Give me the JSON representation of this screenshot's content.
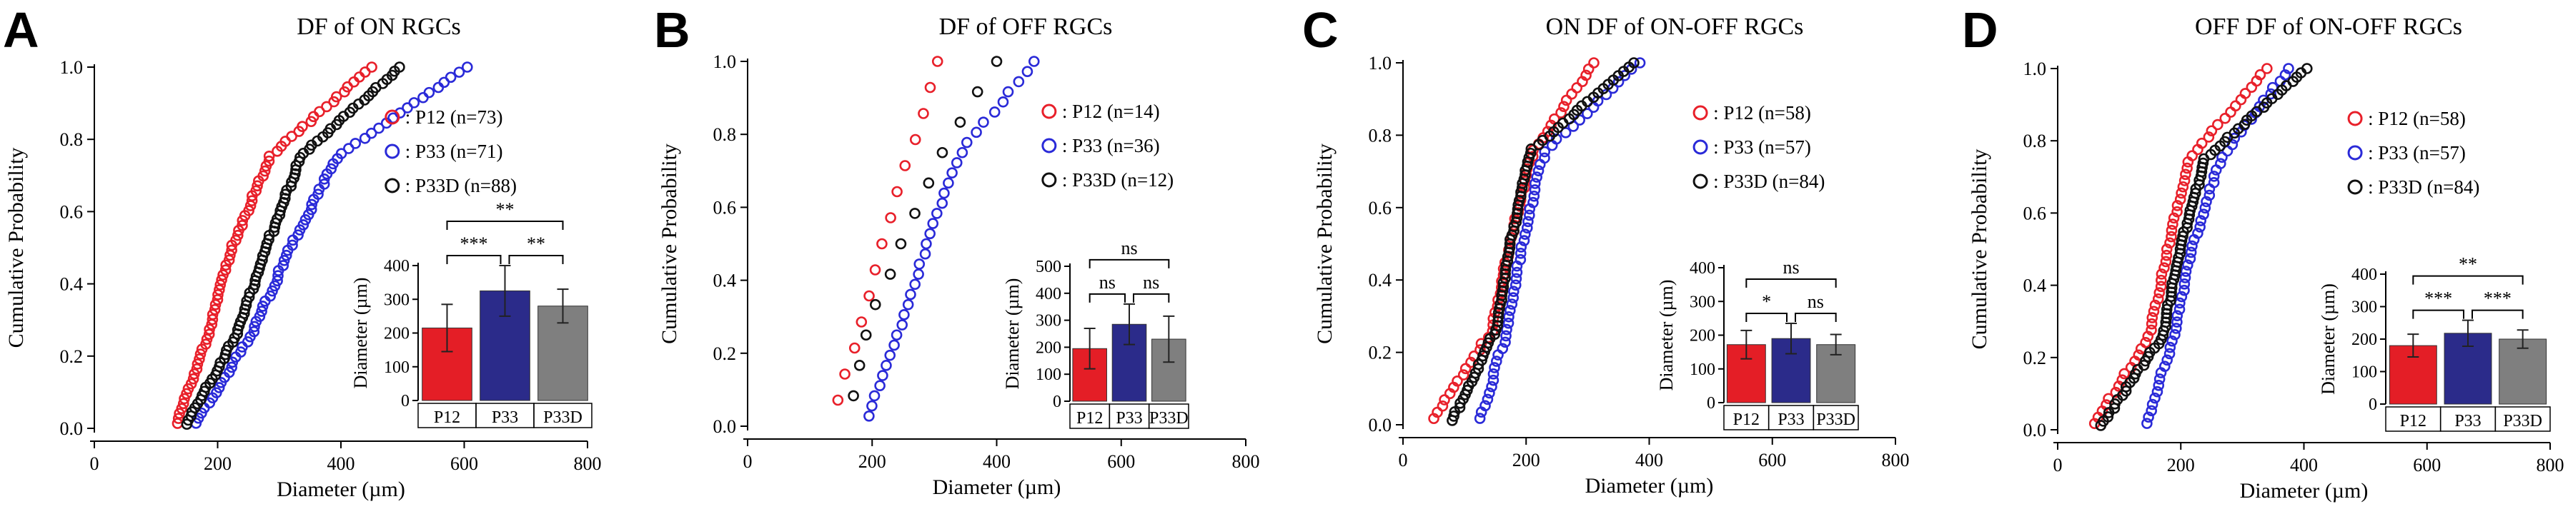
{
  "figure": {
    "background": "#ffffff"
  },
  "chart_data": [
    {
      "panel": "A",
      "type": "scatter",
      "title": "DF of ON RGCs",
      "xlabel": "Diameter (µm)",
      "ylabel": "Cumulative  Probability",
      "xlim": [
        0,
        800
      ],
      "ylim": [
        0,
        1.0
      ],
      "xticks": [
        0,
        200,
        400,
        600,
        800
      ],
      "yticks": [
        0.0,
        0.2,
        0.4,
        0.6,
        0.8,
        1.0
      ],
      "yticklabels": [
        "0.0",
        "0.2",
        "0.4",
        "0.6",
        "0.8",
        "1.0"
      ],
      "legend": {
        "placement": "top-right"
      },
      "series": [
        {
          "name": "P12",
          "legend": ": P12 (n=73)",
          "color": "#e8202a",
          "n": 73,
          "min": 135,
          "q1": 185,
          "med": 225,
          "q3": 285,
          "max": 450
        },
        {
          "name": "P33",
          "legend": ": P33 (n=71)",
          "color": "#2a2ad8",
          "n": 71,
          "min": 165,
          "q1": 255,
          "med": 320,
          "q3": 395,
          "max": 605
        },
        {
          "name": "P33D",
          "legend": ": P33D (n=88)",
          "color": "#111111",
          "n": 88,
          "min": 150,
          "q1": 230,
          "med": 280,
          "q3": 335,
          "max": 495
        }
      ],
      "inset": {
        "type": "bar",
        "ylabel": "Diameter (µm)",
        "ylim": [
          0,
          400
        ],
        "yticks": [
          0,
          100,
          200,
          300,
          400
        ],
        "categories": [
          "P12",
          "P33",
          "P33D"
        ],
        "values": [
          215,
          325,
          280
        ],
        "errors": [
          70,
          75,
          50
        ],
        "colors": [
          "#e41e26",
          "#2b2b8a",
          "#7f7f7f"
        ],
        "significance": [
          {
            "from": 0,
            "to": 2,
            "label": "**",
            "level": 1
          },
          {
            "from": 0,
            "to": 1,
            "label": "***",
            "level": 0
          },
          {
            "from": 1,
            "to": 2,
            "label": "**",
            "level": 0
          }
        ]
      }
    },
    {
      "panel": "B",
      "type": "scatter",
      "title": "DF of OFF RGCs",
      "xlabel": "Diameter (µm)",
      "ylabel": "Cumulative  Probability",
      "xlim": [
        0,
        800
      ],
      "ylim": [
        0,
        1.0
      ],
      "xticks": [
        0,
        200,
        400,
        600,
        800
      ],
      "yticks": [
        0.0,
        0.2,
        0.4,
        0.6,
        0.8,
        1.0
      ],
      "yticklabels": [
        "0.0",
        "0.2",
        "0.4",
        "0.6",
        "0.8",
        "1.0"
      ],
      "legend": {
        "placement": "top-right"
      },
      "series": [
        {
          "name": "P12",
          "legend": ": P12 (n=14)",
          "color": "#e8202a",
          "n": 14,
          "min": 145,
          "q1": 185,
          "med": 220,
          "q3": 265,
          "max": 305
        },
        {
          "name": "P33",
          "legend": ": P33 (n=36)",
          "color": "#2a2ad8",
          "n": 36,
          "min": 195,
          "q1": 245,
          "med": 290,
          "q3": 345,
          "max": 460
        },
        {
          "name": "P33D",
          "legend": ": P33D (n=12)",
          "color": "#111111",
          "n": 12,
          "min": 170,
          "q1": 200,
          "med": 260,
          "q3": 320,
          "max": 400
        }
      ],
      "inset": {
        "type": "bar",
        "ylabel": "Diameter (µm)",
        "ylim": [
          0,
          500
        ],
        "yticks": [
          0,
          100,
          200,
          300,
          400,
          500
        ],
        "categories": [
          "P12",
          "P33",
          "P33D"
        ],
        "values": [
          195,
          285,
          230
        ],
        "errors": [
          75,
          75,
          85
        ],
        "colors": [
          "#e41e26",
          "#2b2b8a",
          "#7f7f7f"
        ],
        "significance": [
          {
            "from": 0,
            "to": 2,
            "label": "ns",
            "level": 1
          },
          {
            "from": 0,
            "to": 1,
            "label": "ns",
            "level": 0
          },
          {
            "from": 1,
            "to": 2,
            "label": "ns",
            "level": 0
          }
        ]
      }
    },
    {
      "panel": "C",
      "type": "scatter",
      "title": "ON DF of ON-OFF RGCs",
      "xlabel": "Diameter (µm)",
      "ylabel": "Cumulative  Probability",
      "xlim": [
        0,
        800
      ],
      "ylim": [
        0,
        1.0
      ],
      "xticks": [
        0,
        200,
        400,
        600,
        800
      ],
      "yticks": [
        0.0,
        0.2,
        0.4,
        0.6,
        0.8,
        1.0
      ],
      "yticklabels": [
        "0.0",
        "0.2",
        "0.4",
        "0.6",
        "0.8",
        "1.0"
      ],
      "legend": {
        "placement": "top-right"
      },
      "series": [
        {
          "name": "P12",
          "legend": ": P12 (n=58)",
          "color": "#e8202a",
          "n": 58,
          "min": 50,
          "q1": 145,
          "med": 175,
          "q3": 210,
          "max": 310
        },
        {
          "name": "P33",
          "legend": ": P33 (n=57)",
          "color": "#2a2ad8",
          "n": 57,
          "min": 125,
          "q1": 170,
          "med": 195,
          "q3": 230,
          "max": 385
        },
        {
          "name": "P33D",
          "legend": ": P33D (n=84)",
          "color": "#111111",
          "n": 84,
          "min": 80,
          "q1": 150,
          "med": 175,
          "q3": 205,
          "max": 375
        }
      ],
      "inset": {
        "type": "bar",
        "ylabel": "Diameter (µm)",
        "ylim": [
          0,
          400
        ],
        "yticks": [
          0,
          100,
          200,
          300,
          400
        ],
        "categories": [
          "P12",
          "P33",
          "P33D"
        ],
        "values": [
          172,
          190,
          172
        ],
        "errors": [
          42,
          45,
          30
        ],
        "colors": [
          "#e41e26",
          "#2b2b8a",
          "#7f7f7f"
        ],
        "significance": [
          {
            "from": 0,
            "to": 2,
            "label": "ns",
            "level": 1
          },
          {
            "from": 0,
            "to": 1,
            "label": "*",
            "level": 0
          },
          {
            "from": 1,
            "to": 2,
            "label": "ns",
            "level": 0
          }
        ]
      }
    },
    {
      "panel": "D",
      "type": "scatter",
      "title": "OFF DF of ON-OFF RGCs",
      "xlabel": "Diameter (µm)",
      "ylabel": "Cumulative  Probability",
      "xlim": [
        0,
        800
      ],
      "ylim": [
        0,
        1.0
      ],
      "xticks": [
        0,
        200,
        400,
        600,
        800
      ],
      "yticks": [
        0.0,
        0.2,
        0.4,
        0.6,
        0.8,
        1.0
      ],
      "yticklabels": [
        "0.0",
        "0.2",
        "0.4",
        "0.6",
        "0.8",
        "1.0"
      ],
      "legend": {
        "placement": "top-right"
      },
      "series": [
        {
          "name": "P12",
          "legend": ": P12 (n=58)",
          "color": "#e8202a",
          "n": 58,
          "min": 60,
          "q1": 150,
          "med": 180,
          "q3": 215,
          "max": 340
        },
        {
          "name": "P33",
          "legend": ": P33 (n=57)",
          "color": "#2a2ad8",
          "n": 57,
          "min": 145,
          "q1": 190,
          "med": 220,
          "q3": 265,
          "max": 375
        },
        {
          "name": "P33D",
          "legend": ": P33D (n=84)",
          "color": "#111111",
          "n": 84,
          "min": 70,
          "q1": 170,
          "med": 200,
          "q3": 240,
          "max": 405
        }
      ],
      "inset": {
        "type": "bar",
        "ylabel": "Diameter (µm)",
        "ylim": [
          0,
          400
        ],
        "yticks": [
          0,
          100,
          200,
          300,
          400
        ],
        "categories": [
          "P12",
          "P33",
          "P33D"
        ],
        "values": [
          180,
          218,
          200
        ],
        "errors": [
          35,
          40,
          28
        ],
        "colors": [
          "#e41e26",
          "#2b2b8a",
          "#7f7f7f"
        ],
        "significance": [
          {
            "from": 0,
            "to": 2,
            "label": "**",
            "level": 1
          },
          {
            "from": 0,
            "to": 1,
            "label": "***",
            "level": 0
          },
          {
            "from": 1,
            "to": 2,
            "label": "***",
            "level": 0
          }
        ]
      }
    }
  ]
}
